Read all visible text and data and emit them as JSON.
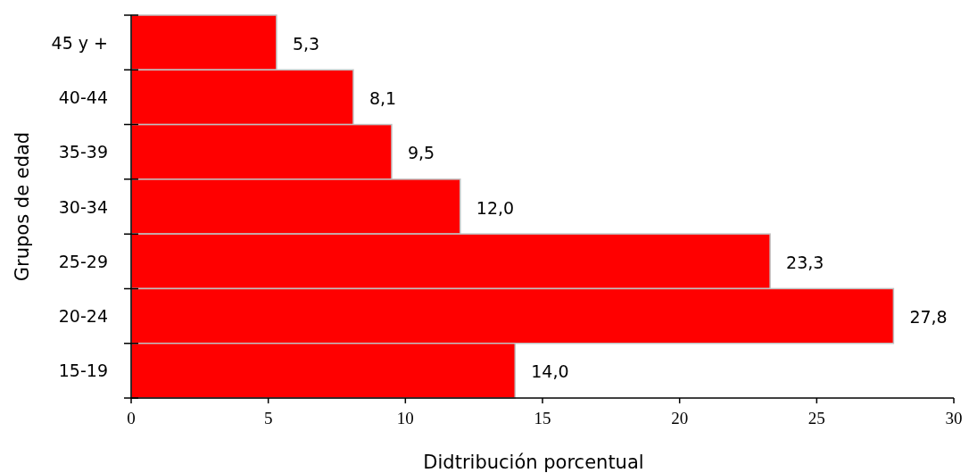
{
  "chart_data": {
    "type": "bar",
    "orientation": "horizontal",
    "xlabel": "Didtribución porcentual",
    "ylabel": "Grupos de edad",
    "categories": [
      "45 y +",
      "40-44",
      "35-39",
      "30-34",
      "25-29",
      "20-24",
      "15-19"
    ],
    "values": [
      5.3,
      8.1,
      9.5,
      12.0,
      23.3,
      27.8,
      14.0
    ],
    "value_labels": [
      "5,3",
      "8,1",
      "9,5",
      "12,0",
      "23,3",
      "27,8",
      "14,0"
    ],
    "color": "#ff0000",
    "xlim": [
      0,
      30
    ],
    "xticks": [
      0,
      5,
      10,
      15,
      20,
      25,
      30
    ]
  }
}
